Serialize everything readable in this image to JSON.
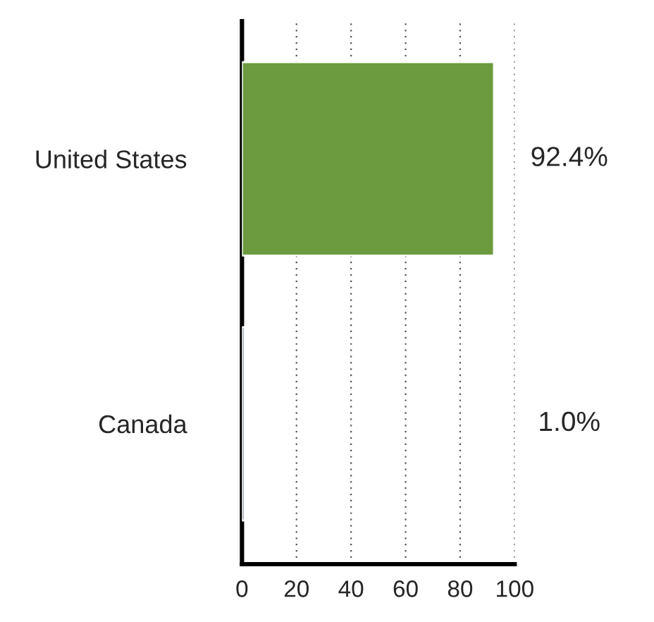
{
  "chart_data": {
    "type": "bar",
    "orientation": "horizontal",
    "categories": [
      "United States",
      "Canada"
    ],
    "values": [
      92.4,
      1.0
    ],
    "colors": [
      "#6b9a3f",
      "#8e9aa6"
    ],
    "value_labels": [
      "92.4%",
      "1.0%"
    ],
    "xlim": [
      0,
      100
    ],
    "xticks": [
      0,
      20,
      40,
      60,
      80,
      100
    ],
    "grid": "x"
  }
}
